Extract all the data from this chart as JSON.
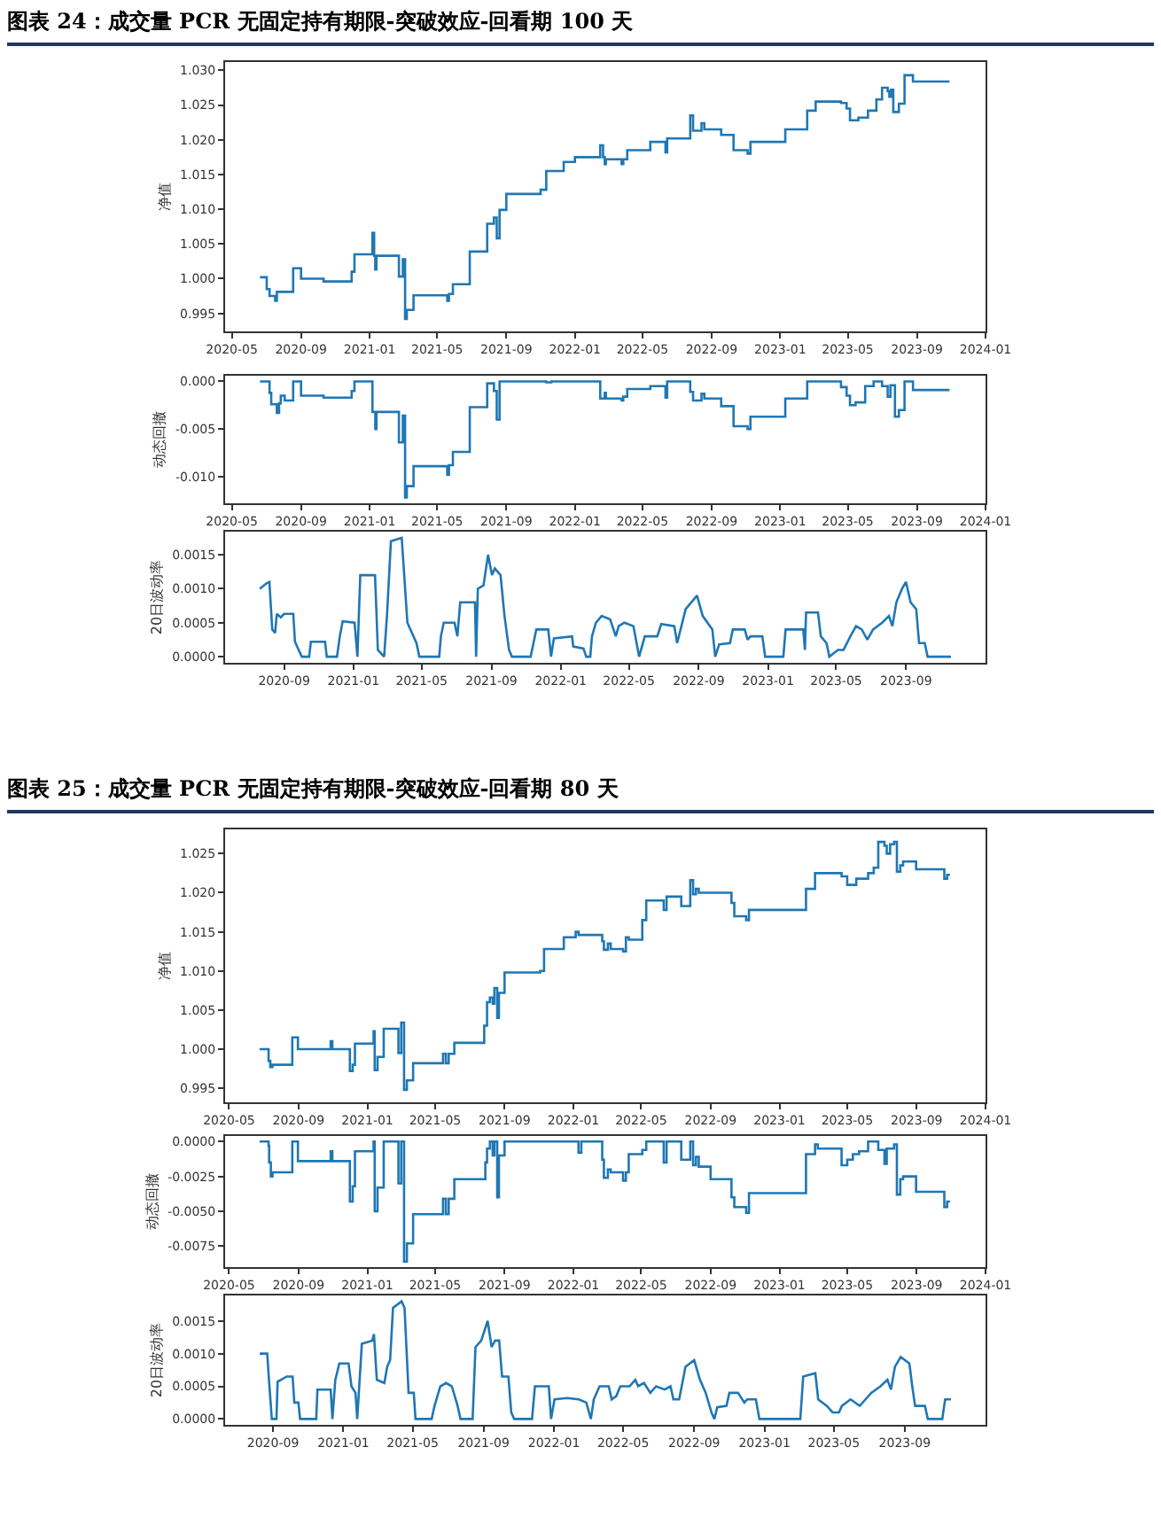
{
  "chart_data": [
    {
      "type": "step",
      "title": "图表 24：成交量 PCR 无固定持有期限-突破效应-回看期 100 天",
      "ylabel": "净值",
      "xlim": [
        "2020-04-19",
        "2024-01-01"
      ],
      "xticks": [
        "2020-05",
        "2020-09",
        "2021-01",
        "2021-05",
        "2021-09",
        "2022-01",
        "2022-05",
        "2022-09",
        "2023-01",
        "2023-05",
        "2023-09",
        "2024-01"
      ],
      "ylim": [
        0.9924,
        1.0312
      ],
      "yticks": [
        {
          "value": 0.995,
          "label": "0.995"
        },
        {
          "value": 1.0,
          "label": "1.000"
        },
        {
          "value": 1.005,
          "label": "1.005"
        },
        {
          "value": 1.01,
          "label": "1.010"
        },
        {
          "value": 1.015,
          "label": "1.015"
        },
        {
          "value": 1.02,
          "label": "1.020"
        },
        {
          "value": 1.025,
          "label": "1.025"
        },
        {
          "value": 1.03,
          "label": "1.030"
        }
      ],
      "x": [
        "2020-06-20",
        "2020-07-02",
        "2020-07-07",
        "2020-07-17",
        "2020-07-20",
        "2020-08-18",
        "2020-09-01",
        "2020-10-11",
        "2020-11-30",
        "2020-12-05",
        "2021-01-06",
        "2021-01-09",
        "2021-01-11",
        "2021-01-13",
        "2021-02-22",
        "2021-03-01",
        "2021-03-05",
        "2021-03-08",
        "2021-03-20",
        "2021-05-19",
        "2021-05-22",
        "2021-05-29",
        "2021-06-28",
        "2021-07-29",
        "2021-08-10",
        "2021-08-15",
        "2021-08-20",
        "2021-09-01",
        "2021-11-01",
        "2021-11-11",
        "2021-12-12",
        "2022-01-01",
        "2022-02-15",
        "2022-02-20",
        "2022-02-23",
        "2022-02-25",
        "2022-03-25",
        "2022-03-28",
        "2022-04-04",
        "2022-05-15",
        "2022-06-11",
        "2022-06-14",
        "2022-07-25",
        "2022-07-30",
        "2022-08-14",
        "2022-08-19",
        "2022-09-18",
        "2022-10-10",
        "2022-11-04",
        "2022-11-09",
        "2023-01-10",
        "2023-02-18",
        "2023-03-05",
        "2023-04-19",
        "2023-04-29",
        "2023-05-05",
        "2023-05-20",
        "2023-06-06",
        "2023-06-21",
        "2023-07-01",
        "2023-07-11",
        "2023-07-14",
        "2023-07-17",
        "2023-07-21",
        "2023-07-31",
        "2023-08-10",
        "2023-08-25",
        "2023-10-29"
      ],
      "series": [
        {
          "color": "#1f77b4",
          "values": [
            1.0002,
            0.9985,
            0.9975,
            0.9968,
            0.9981,
            1.0015,
            1.0,
            0.9996,
            1.001,
            1.0035,
            1.0066,
            1.0033,
            1.0013,
            1.0033,
            1.0003,
            1.0028,
            0.9942,
            0.9955,
            0.9976,
            0.9968,
            0.9978,
            0.9992,
            1.0039,
            1.0079,
            1.0088,
            1.0058,
            1.0099,
            1.0122,
            1.0128,
            1.0155,
            1.0168,
            1.0175,
            1.0192,
            1.0175,
            1.0165,
            1.0172,
            1.0165,
            1.0172,
            1.0185,
            1.0197,
            1.0182,
            1.0202,
            1.0235,
            1.0213,
            1.0224,
            1.0215,
            1.0207,
            1.0185,
            1.018,
            1.0197,
            1.0215,
            1.0242,
            1.0255,
            1.0253,
            1.0245,
            1.0228,
            1.0232,
            1.0242,
            1.0258,
            1.0275,
            1.027,
            1.0262,
            1.0272,
            1.024,
            1.0252,
            1.0293,
            1.0284,
            1.0284
          ]
        }
      ]
    },
    {
      "type": "step",
      "ylabel": "动态回撤",
      "xlim": [
        "2020-04-19",
        "2024-01-01"
      ],
      "xticks": [
        "2020-05",
        "2020-09",
        "2021-01",
        "2021-05",
        "2021-09",
        "2022-01",
        "2022-05",
        "2022-09",
        "2023-01",
        "2023-05",
        "2023-09",
        "2024-01"
      ],
      "ylim": [
        -0.0128,
        0.0006
      ],
      "yticks": [
        {
          "value": -0.01,
          "label": "-0.010"
        },
        {
          "value": -0.005,
          "label": "-0.005"
        },
        {
          "value": 0,
          "label": "0.000"
        }
      ],
      "x": [
        "2020-06-20",
        "2020-07-07",
        "2020-07-10",
        "2020-07-20",
        "2020-07-24",
        "2020-07-27",
        "2020-08-03",
        "2020-08-18",
        "2020-09-01",
        "2020-10-11",
        "2020-11-30",
        "2020-12-05",
        "2021-01-06",
        "2021-01-11",
        "2021-01-13",
        "2021-02-22",
        "2021-03-01",
        "2021-03-05",
        "2021-03-08",
        "2021-03-20",
        "2021-05-19",
        "2021-05-22",
        "2021-05-29",
        "2021-06-28",
        "2021-07-29",
        "2021-08-10",
        "2021-08-15",
        "2021-08-20",
        "2021-11-11",
        "2021-11-20",
        "2022-02-15",
        "2022-02-23",
        "2022-02-25",
        "2022-03-25",
        "2022-03-28",
        "2022-04-04",
        "2022-05-15",
        "2022-06-11",
        "2022-06-14",
        "2022-07-25",
        "2022-07-30",
        "2022-08-14",
        "2022-08-19",
        "2022-09-18",
        "2022-10-10",
        "2022-11-04",
        "2022-11-09",
        "2023-01-10",
        "2023-02-18",
        "2023-04-19",
        "2023-04-29",
        "2023-05-05",
        "2023-05-15",
        "2023-06-01",
        "2023-06-16",
        "2023-07-01",
        "2023-07-11",
        "2023-07-16",
        "2023-07-24",
        "2023-07-31",
        "2023-08-10",
        "2023-08-25",
        "2023-10-29"
      ],
      "series": [
        {
          "color": "#1f77b4",
          "values": [
            0,
            -0.0012,
            -0.0024,
            -0.0033,
            -0.0023,
            -0.0015,
            -0.002,
            0,
            -0.0015,
            -0.0017,
            -0.001,
            0,
            -0.0032,
            -0.005,
            -0.0032,
            -0.0064,
            -0.0036,
            -0.0122,
            -0.011,
            -0.0089,
            -0.0098,
            -0.0088,
            -0.0074,
            -0.0027,
            -0.0002,
            -0.001,
            -0.004,
            0,
            -0.0001,
            0,
            -0.0018,
            -0.0012,
            -0.0018,
            -0.002,
            -0.0016,
            -0.0008,
            -0.0005,
            -0.0017,
            0,
            -0.0011,
            -0.002,
            -0.0013,
            -0.0018,
            -0.0026,
            -0.0047,
            -0.005,
            -0.0037,
            -0.0018,
            0,
            -0.0006,
            -0.0015,
            -0.0025,
            -0.0022,
            -0.0005,
            0,
            -0.0005,
            -0.0016,
            -0.0004,
            -0.0037,
            -0.003,
            0,
            -0.0009,
            -0.0009
          ]
        }
      ]
    },
    {
      "type": "line",
      "ylabel": "20日波动率",
      "xlim": [
        "2020-05-20",
        "2024-01-19"
      ],
      "xticks": [
        "2020-09",
        "2021-01",
        "2021-05",
        "2021-09",
        "2022-01",
        "2022-05",
        "2022-09",
        "2023-01",
        "2023-05",
        "2023-09"
      ],
      "ylim": [
        -9e-05,
        0.00184
      ],
      "yticks": [
        {
          "value": 0,
          "label": "0.0000"
        },
        {
          "value": 0.0005,
          "label": "0.0005"
        },
        {
          "value": 0.001,
          "label": "0.0010"
        },
        {
          "value": 0.0015,
          "label": "0.0015"
        }
      ],
      "x": [
        "2020-07-20",
        "2020-08-01",
        "2020-08-06",
        "2020-08-11",
        "2020-08-16",
        "2020-08-19",
        "2020-08-26",
        "2020-09-01",
        "2020-09-17",
        "2020-09-20",
        "2020-10-02",
        "2020-10-15",
        "2020-10-18",
        "2020-11-12",
        "2020-11-15",
        "2020-12-03",
        "2020-12-08",
        "2020-12-13",
        "2021-01-03",
        "2021-01-08",
        "2021-01-13",
        "2021-02-08",
        "2021-02-13",
        "2021-02-24",
        "2021-03-01",
        "2021-03-08",
        "2021-03-27",
        "2021-04-06",
        "2021-04-22",
        "2021-04-27",
        "2021-06-01",
        "2021-06-04",
        "2021-06-09",
        "2021-06-28",
        "2021-07-03",
        "2021-07-08",
        "2021-08-03",
        "2021-08-05",
        "2021-08-08",
        "2021-08-18",
        "2021-08-26",
        "2021-09-02",
        "2021-09-07",
        "2021-09-17",
        "2021-09-24",
        "2021-10-02",
        "2021-10-07",
        "2021-11-09",
        "2021-11-14",
        "2021-11-19",
        "2021-12-10",
        "2021-12-15",
        "2021-12-20",
        "2022-01-21",
        "2022-01-23",
        "2022-02-10",
        "2022-02-15",
        "2022-02-22",
        "2022-02-25",
        "2022-03-04",
        "2022-03-14",
        "2022-03-29",
        "2022-04-08",
        "2022-04-13",
        "2022-04-23",
        "2022-05-09",
        "2022-05-19",
        "2022-05-29",
        "2022-06-20",
        "2022-06-27",
        "2022-07-20",
        "2022-07-25",
        "2022-08-09",
        "2022-08-29",
        "2022-09-08",
        "2022-09-25",
        "2022-09-30",
        "2022-10-07",
        "2022-10-26",
        "2022-10-31",
        "2022-11-21",
        "2022-11-26",
        "2022-12-01",
        "2022-12-22",
        "2022-12-27",
        "2023-01-28",
        "2023-02-01",
        "2023-03-04",
        "2023-03-07",
        "2023-03-09",
        "2023-03-30",
        "2023-04-04",
        "2023-04-14",
        "2023-04-19",
        "2023-05-04",
        "2023-05-14",
        "2023-05-26",
        "2023-06-05",
        "2023-06-15",
        "2023-06-25",
        "2023-07-05",
        "2023-07-21",
        "2023-08-02",
        "2023-08-08",
        "2023-08-15",
        "2023-08-25",
        "2023-09-01",
        "2023-09-09",
        "2023-09-19",
        "2023-09-24",
        "2023-10-04",
        "2023-10-09",
        "2023-11-19"
      ],
      "series": [
        {
          "color": "#1f77b4",
          "values": [
            0.001,
            0.00108,
            0.0011,
            0.0004,
            0.00035,
            0.00063,
            0.00058,
            0.00063,
            0.00063,
            0.00022,
            0,
            0,
            0.00022,
            0.00022,
            0,
            0,
            0.0003,
            0.00052,
            0.0005,
            0,
            0.0012,
            0.0012,
            0.0001,
            0,
            0.0006,
            0.0017,
            0.00175,
            0.0005,
            0.0002,
            0,
            0,
            0.0003,
            0.0005,
            0.0005,
            0.0003,
            0.0008,
            0.0008,
            0,
            0.001,
            0.00105,
            0.0015,
            0.0012,
            0.0013,
            0.0012,
            0.0006,
            0.0001,
            0,
            0,
            0.0002,
            0.0004,
            0.0004,
            0,
            0.00027,
            0.0003,
            0.00015,
            0.00012,
            0,
            0,
            0.0003,
            0.0005,
            0.0006,
            0.00055,
            0.0003,
            0.00045,
            0.0005,
            0.00045,
            0,
            0.0003,
            0.0003,
            0.00048,
            0.00045,
            0.0002,
            0.0007,
            0.0009,
            0.0006,
            0.0004,
            0,
            0.00018,
            0.0002,
            0.0004,
            0.0004,
            0.00025,
            0.0003,
            0.0003,
            0,
            0,
            0.0004,
            0.0004,
            0.0001,
            0.00065,
            0.00065,
            0.0003,
            0.0002,
            0,
            0.0001,
            0.0001,
            0.0003,
            0.00045,
            0.0004,
            0.00025,
            0.0004,
            0.0005,
            0.0006,
            0.00045,
            0.0008,
            0.001,
            0.0011,
            0.0008,
            0.0007,
            0.0002,
            0.0002,
            0,
            0
          ]
        }
      ]
    },
    {
      "type": "step",
      "title": "图表 25：成交量 PCR 无固定持有期限-突破效应-回看期 80 天",
      "ylabel": "净值",
      "xlim": [
        "2020-04-24",
        "2024-01-01"
      ],
      "xticks": [
        "2020-05",
        "2020-09",
        "2021-01",
        "2021-05",
        "2021-09",
        "2022-01",
        "2022-05",
        "2022-09",
        "2023-01",
        "2023-05",
        "2023-09",
        "2024-01"
      ],
      "ylim": [
        0.9932,
        1.0281
      ],
      "yticks": [
        {
          "value": 0.995,
          "label": "0.995"
        },
        {
          "value": 1.0,
          "label": "1.000"
        },
        {
          "value": 1.005,
          "label": "1.005"
        },
        {
          "value": 1.01,
          "label": "1.010"
        },
        {
          "value": 1.015,
          "label": "1.015"
        },
        {
          "value": 1.02,
          "label": "1.020"
        },
        {
          "value": 1.025,
          "label": "1.025"
        }
      ],
      "x": [
        "2020-06-24",
        "2020-07-10",
        "2020-07-13",
        "2020-07-17",
        "2020-08-21",
        "2020-08-31",
        "2020-10-28",
        "2020-10-31",
        "2020-12-01",
        "2020-12-06",
        "2020-12-10",
        "2021-01-12",
        "2021-01-14",
        "2021-01-19",
        "2021-01-30",
        "2021-02-25",
        "2021-03-02",
        "2021-03-07",
        "2021-03-12",
        "2021-03-23",
        "2021-05-15",
        "2021-05-20",
        "2021-05-25",
        "2021-06-04",
        "2021-07-27",
        "2021-08-01",
        "2021-08-06",
        "2021-08-11",
        "2021-08-14",
        "2021-08-19",
        "2021-08-22",
        "2021-09-01",
        "2021-11-03",
        "2021-11-10",
        "2021-12-15",
        "2022-01-05",
        "2022-01-10",
        "2022-02-21",
        "2022-02-24",
        "2022-03-03",
        "2022-03-08",
        "2022-03-30",
        "2022-04-04",
        "2022-04-09",
        "2022-05-03",
        "2022-05-10",
        "2022-06-10",
        "2022-06-15",
        "2022-07-11",
        "2022-07-27",
        "2022-08-01",
        "2022-08-06",
        "2022-08-11",
        "2022-10-08",
        "2022-10-13",
        "2022-11-03",
        "2022-11-08",
        "2023-02-17",
        "2023-03-05",
        "2023-04-21",
        "2023-05-01",
        "2023-05-17",
        "2023-06-07",
        "2023-06-17",
        "2023-06-25",
        "2023-07-06",
        "2023-07-10",
        "2023-07-16",
        "2023-07-23",
        "2023-07-28",
        "2023-08-03",
        "2023-08-08",
        "2023-08-31",
        "2023-10-20",
        "2023-10-25",
        "2023-10-30"
      ],
      "series": [
        {
          "color": "#1f77b4",
          "values": [
            1.0,
            0.9985,
            0.9977,
            0.998,
            1.0015,
            1.0,
            1.001,
            1.0,
            0.9972,
            0.998,
            1.0007,
            1.0023,
            0.9973,
            0.999,
            1.0026,
            0.9995,
            1.0034,
            0.9948,
            0.996,
            0.9982,
            0.9994,
            0.9982,
            0.9994,
            1.0008,
            1.003,
            1.006,
            1.0066,
            1.0058,
            1.0078,
            1.004,
            1.0072,
            1.0098,
            1.01,
            1.0128,
            1.0143,
            1.015,
            1.0146,
            1.0138,
            1.0127,
            1.0135,
            1.0128,
            1.0125,
            1.0143,
            1.014,
            1.0165,
            1.019,
            1.0178,
            1.0195,
            1.0183,
            1.0216,
            1.0198,
            1.0205,
            1.02,
            1.0187,
            1.017,
            1.0165,
            1.0178,
            1.0205,
            1.0225,
            1.0221,
            1.021,
            1.0218,
            1.0225,
            1.0232,
            1.0265,
            1.026,
            1.025,
            1.0262,
            1.0265,
            1.0227,
            1.0235,
            1.024,
            1.023,
            1.0218,
            1.0223,
            1.0223
          ]
        }
      ]
    },
    {
      "type": "step",
      "ylabel": "动态回撤",
      "xlim": [
        "2020-04-24",
        "2024-01-01"
      ],
      "xticks": [
        "2020-05",
        "2020-09",
        "2021-01",
        "2021-05",
        "2021-09",
        "2022-01",
        "2022-05",
        "2022-09",
        "2023-01",
        "2023-05",
        "2023-09",
        "2024-01"
      ],
      "ylim": [
        -0.009,
        0.0004
      ],
      "yticks": [
        {
          "value": -0.0075,
          "label": "-0.0075"
        },
        {
          "value": -0.005,
          "label": "-0.0050"
        },
        {
          "value": -0.0025,
          "label": "-0.0025"
        },
        {
          "value": 0,
          "label": "0.0000"
        }
      ],
      "x": [
        "2020-06-24",
        "2020-07-10",
        "2020-07-11",
        "2020-07-14",
        "2020-07-17",
        "2020-08-21",
        "2020-08-31",
        "2020-10-28",
        "2020-10-31",
        "2020-12-01",
        "2020-12-06",
        "2020-12-10",
        "2021-01-12",
        "2021-01-14",
        "2021-01-19",
        "2021-01-30",
        "2021-02-25",
        "2021-03-02",
        "2021-03-07",
        "2021-03-12",
        "2021-03-23",
        "2021-05-15",
        "2021-05-20",
        "2021-05-25",
        "2021-06-04",
        "2021-07-29",
        "2021-08-01",
        "2021-08-06",
        "2021-08-11",
        "2021-08-14",
        "2021-08-19",
        "2021-08-22",
        "2021-09-01",
        "2022-01-10",
        "2022-01-15",
        "2022-02-21",
        "2022-02-24",
        "2022-03-03",
        "2022-03-08",
        "2022-03-30",
        "2022-04-04",
        "2022-04-09",
        "2022-05-03",
        "2022-05-10",
        "2022-06-10",
        "2022-06-15",
        "2022-07-11",
        "2022-07-27",
        "2022-08-01",
        "2022-08-06",
        "2022-08-11",
        "2022-09-01",
        "2022-10-08",
        "2022-10-13",
        "2022-11-03",
        "2022-11-08",
        "2023-02-17",
        "2023-03-05",
        "2023-03-10",
        "2023-04-21",
        "2023-05-01",
        "2023-05-11",
        "2023-05-22",
        "2023-06-07",
        "2023-06-25",
        "2023-07-06",
        "2023-07-10",
        "2023-07-23",
        "2023-07-28",
        "2023-08-03",
        "2023-08-08",
        "2023-08-31",
        "2023-10-20",
        "2023-10-25",
        "2023-10-30"
      ],
      "series": [
        {
          "color": "#1f77b4",
          "values": [
            0,
            -0.0003,
            -0.0015,
            -0.0025,
            -0.0022,
            0,
            -0.0014,
            -0.0007,
            -0.0014,
            -0.0043,
            -0.0032,
            -0.0007,
            0,
            -0.005,
            -0.0033,
            0,
            -0.003,
            0,
            -0.0086,
            -0.0073,
            -0.0052,
            -0.0041,
            -0.0052,
            -0.0041,
            -0.0027,
            -0.0015,
            -0.0005,
            0,
            -0.001,
            0,
            -0.004,
            -0.001,
            0,
            -0.0008,
            0,
            -0.0013,
            -0.0026,
            -0.002,
            -0.0022,
            -0.0028,
            -0.0022,
            -0.0009,
            -0.0006,
            0,
            -0.0015,
            0,
            -0.0013,
            0,
            -0.0017,
            -0.0011,
            -0.0018,
            -0.0027,
            -0.004,
            -0.0047,
            -0.0051,
            -0.0037,
            -0.0009,
            -0.0002,
            -0.0005,
            -0.0017,
            -0.0013,
            -0.0009,
            -0.0007,
            0,
            -0.0006,
            -0.0016,
            -0.0005,
            -0.0002,
            -0.0038,
            -0.0027,
            -0.0025,
            -0.0036,
            -0.0047,
            -0.0043,
            -0.0043
          ]
        }
      ]
    },
    {
      "type": "line",
      "ylabel": "20日波动率",
      "xlim": [
        "2020-06-10",
        "2024-01-19"
      ],
      "xticks": [
        "2020-09",
        "2021-01",
        "2021-05",
        "2021-09",
        "2022-01",
        "2022-05",
        "2022-09",
        "2023-01",
        "2023-05",
        "2023-09"
      ],
      "ylim": [
        -9e-05,
        0.00189
      ],
      "yticks": [
        {
          "value": 0,
          "label": "0.0000"
        },
        {
          "value": 0.0005,
          "label": "0.0005"
        },
        {
          "value": 0.001,
          "label": "0.0010"
        },
        {
          "value": 0.0015,
          "label": "0.0015"
        }
      ],
      "x": [
        "2020-08-09",
        "2020-08-22",
        "2020-08-25",
        "2020-08-30",
        "2020-09-07",
        "2020-09-09",
        "2020-09-25",
        "2020-10-05",
        "2020-10-08",
        "2020-10-15",
        "2020-10-18",
        "2020-11-15",
        "2020-11-17",
        "2020-12-10",
        "2020-12-13",
        "2020-12-18",
        "2020-12-25",
        "2021-01-10",
        "2021-01-15",
        "2021-01-22",
        "2021-01-25",
        "2021-02-02",
        "2021-02-20",
        "2021-02-23",
        "2021-02-28",
        "2021-03-13",
        "2021-03-18",
        "2021-03-23",
        "2021-03-28",
        "2021-04-12",
        "2021-04-17",
        "2021-04-24",
        "2021-05-03",
        "2021-05-06",
        "2021-06-03",
        "2021-06-08",
        "2021-06-18",
        "2021-06-28",
        "2021-07-08",
        "2021-07-18",
        "2021-07-23",
        "2021-08-13",
        "2021-08-18",
        "2021-08-28",
        "2021-09-08",
        "2021-09-15",
        "2021-09-21",
        "2021-09-28",
        "2021-10-03",
        "2021-10-14",
        "2021-10-19",
        "2021-10-24",
        "2021-11-24",
        "2021-11-29",
        "2021-12-23",
        "2021-12-27",
        "2022-01-02",
        "2022-01-24",
        "2022-02-13",
        "2022-02-26",
        "2022-03-06",
        "2022-03-11",
        "2022-03-21",
        "2022-04-06",
        "2022-04-11",
        "2022-04-19",
        "2022-04-26",
        "2022-05-12",
        "2022-05-22",
        "2022-05-27",
        "2022-06-06",
        "2022-06-17",
        "2022-06-27",
        "2022-07-12",
        "2022-07-22",
        "2022-07-27",
        "2022-08-06",
        "2022-08-17",
        "2022-09-01",
        "2022-09-11",
        "2022-09-21",
        "2022-10-01",
        "2022-10-06",
        "2022-10-11",
        "2022-10-27",
        "2022-11-01",
        "2022-11-16",
        "2022-11-27",
        "2022-12-02",
        "2022-12-17",
        "2022-12-23",
        "2023-03-04",
        "2023-03-09",
        "2023-03-30",
        "2023-04-04",
        "2023-04-19",
        "2023-04-29",
        "2023-05-10",
        "2023-05-15",
        "2023-05-30",
        "2023-06-15",
        "2023-06-25",
        "2023-07-05",
        "2023-07-21",
        "2023-08-02",
        "2023-08-08",
        "2023-08-15",
        "2023-08-25",
        "2023-09-09",
        "2023-09-14",
        "2023-09-19",
        "2023-10-06",
        "2023-10-11",
        "2023-11-05",
        "2023-11-10",
        "2023-11-20"
      ],
      "series": [
        {
          "color": "#1f77b4",
          "values": [
            0.001,
            0.001,
            0.0006,
            0,
            0,
            0.00057,
            0.00065,
            0.00065,
            0.00025,
            0.00025,
            0,
            0,
            0.00045,
            0.00045,
            0,
            0.0006,
            0.00085,
            0.00085,
            0.0005,
            0.0004,
            0,
            0.00115,
            0.0012,
            0.0013,
            0.0006,
            0.00055,
            0.0008,
            0.0009,
            0.0017,
            0.0018,
            0.0017,
            0.0004,
            0.0004,
            0,
            0,
            0.0002,
            0.0005,
            0.00055,
            0.0005,
            0.0002,
            0,
            0,
            0.0011,
            0.0012,
            0.0015,
            0.0011,
            0.0012,
            0.0012,
            0.00065,
            0.00065,
            0.0001,
            0,
            0,
            0.0005,
            0.0005,
            0,
            0.0003,
            0.00032,
            0.0003,
            0.00025,
            0,
            0.0003,
            0.0005,
            0.0005,
            0.0003,
            0.00035,
            0.0005,
            0.0005,
            0.0006,
            0.0005,
            0.00055,
            0.0004,
            0.0005,
            0.00045,
            0.0005,
            0.0003,
            0.0003,
            0.0008,
            0.0009,
            0.0006,
            0.0004,
            0.0001,
            0,
            0.00018,
            0.0002,
            0.0004,
            0.0004,
            0.00025,
            0.0003,
            0.0003,
            0,
            0,
            0.00065,
            0.0007,
            0.0003,
            0.0002,
            0.0001,
            0.0001,
            0.0002,
            0.0003,
            0.0002,
            0.0003,
            0.0004,
            0.0005,
            0.0006,
            0.00045,
            0.0008,
            0.00095,
            0.00085,
            0.0005,
            0.0002,
            0.0002,
            0,
            0,
            0.0003,
            0.0003
          ]
        }
      ]
    }
  ]
}
